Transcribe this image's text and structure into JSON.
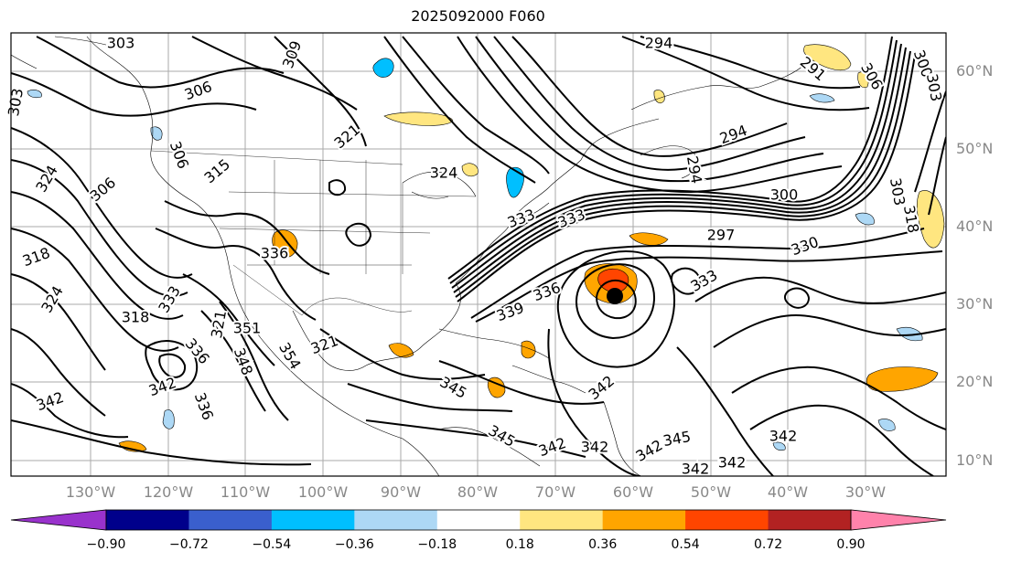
{
  "title": "2025092000 F060",
  "lat_labels": [
    "60°N",
    "50°N",
    "40°N",
    "30°N",
    "20°N",
    "10°N"
  ],
  "lon_labels": [
    "130°W",
    "120°W",
    "110°W",
    "100°W",
    "90°W",
    "80°W",
    "70°W",
    "60°W",
    "50°W",
    "40°W",
    "30°W"
  ],
  "contour_labels": [
    "303",
    "306",
    "303",
    "324",
    "306",
    "318",
    "324",
    "318",
    "321",
    "306",
    "315",
    "336",
    "333",
    "309",
    "321",
    "324",
    "339",
    "336",
    "333",
    "294",
    "294",
    "291",
    "300",
    "294",
    "297",
    "300",
    "303",
    "306",
    "303",
    "333",
    "330",
    "333",
    "318",
    "336",
    "342",
    "348",
    "354",
    "345",
    "342",
    "345",
    "342",
    "342",
    "345",
    "342",
    "342",
    "342",
    "342",
    "321",
    "351",
    "336",
    "342"
  ],
  "colorbar": {
    "ticks": [
      "−0.90",
      "−0.72",
      "−0.54",
      "−0.36",
      "−0.18",
      "0.18",
      "0.36",
      "0.54",
      "0.72",
      "0.90"
    ],
    "colors": [
      "#9932cc",
      "#00008b",
      "#3a5fcd",
      "#00bfff",
      "#add8f5",
      "#ffffff",
      "#ffe680",
      "#ffa500",
      "#ff4500",
      "#b22222",
      "#ff82ab"
    ]
  },
  "storm_marker": "hurricane-center-dot"
}
